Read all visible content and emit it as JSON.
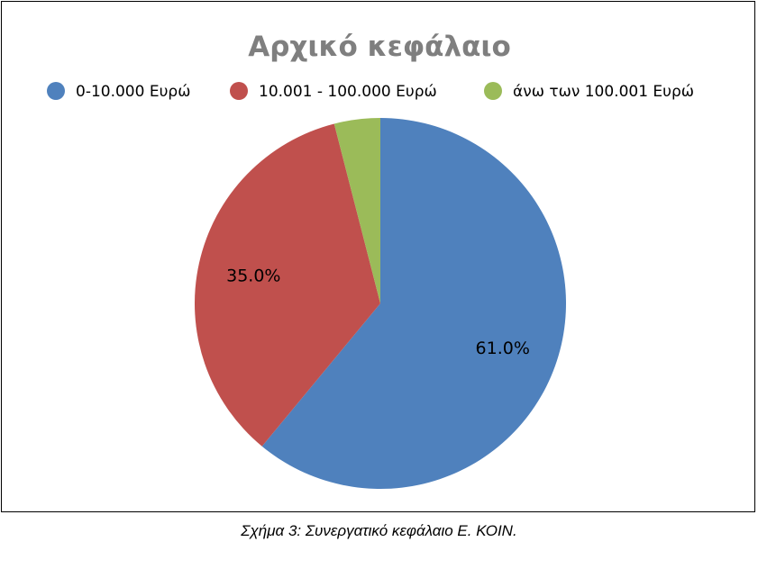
{
  "chart_data": {
    "type": "pie",
    "title": "Αρχικό κεφάλαιο",
    "categories": [
      "0-10.000 Ευρώ",
      "10.001 - 100.000 Ευρώ",
      "άνω των 100.001 Ευρώ"
    ],
    "values": [
      61.0,
      35.0,
      4.0
    ],
    "data_labels": [
      "61.0%",
      "35.0%",
      ""
    ],
    "colors": [
      "#4F81BD",
      "#C0504D",
      "#9BBB59"
    ],
    "legend_position": "top",
    "start_angle_deg": 0,
    "direction": "clockwise"
  },
  "caption": "Σχήμα 3: Συνεργατικό κεφάλαιο Ε. ΚΟΙΝ."
}
